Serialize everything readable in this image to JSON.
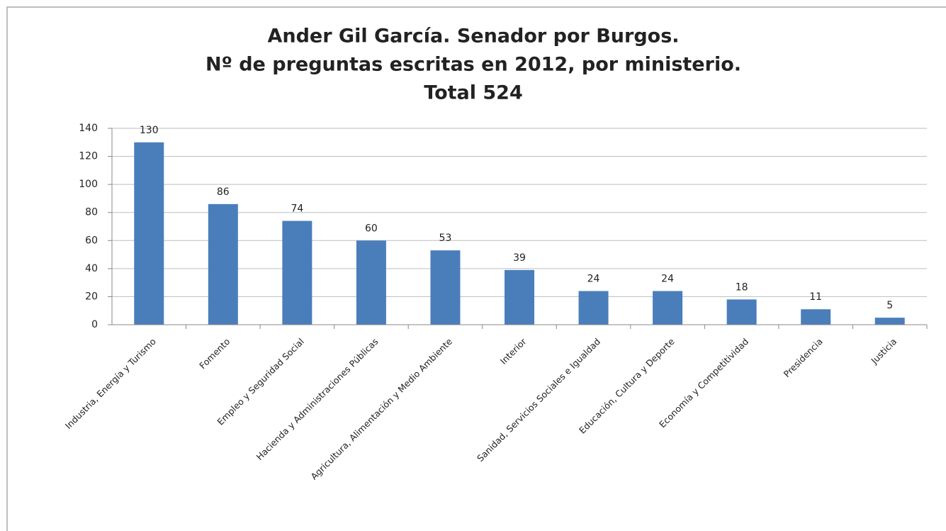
{
  "chart_data": {
    "type": "bar",
    "title": [
      "Ander Gil García. Senador por Burgos.",
      "Nº de preguntas escritas en 2012, por ministerio.",
      "Total 524"
    ],
    "categories": [
      "Industria, Energía y Turismo",
      "Fomento",
      "Empleo y Seguridad Social",
      "Hacienda y Administraciones Públicas",
      "Agricultura, Alimentación y Medio Ambiente",
      "Interior",
      "Sanidad, Servicios Sociales e Igualdad",
      "Educación, Cultura y Deporte",
      "Economía y Competitividad",
      "Presidencia",
      "Justicia"
    ],
    "values": [
      130,
      86,
      74,
      60,
      53,
      39,
      24,
      24,
      18,
      11,
      5
    ],
    "color": "#4a7ebb",
    "ylim": [
      0,
      140
    ],
    "yticks": [
      0,
      20,
      40,
      60,
      80,
      100,
      120,
      140
    ],
    "grid": true
  }
}
